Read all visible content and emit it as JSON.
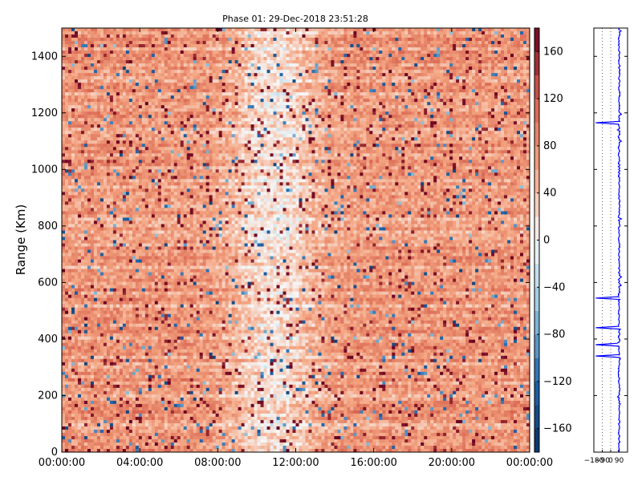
{
  "chart_data": {
    "type": "heatmap",
    "title": "Phase 01: 29-Dec-2018 23:51:28",
    "ylabel": "Range (Km)",
    "xlabel": "",
    "x_ticks": [
      "00:00:00",
      "04:00:00",
      "08:00:00",
      "12:00:00",
      "16:00:00",
      "20:00:00",
      "00:00:00"
    ],
    "y_ticks": [
      0,
      200,
      400,
      600,
      800,
      1000,
      1200,
      1400
    ],
    "xlim_hours": [
      0,
      24
    ],
    "ylim": [
      0,
      1500
    ],
    "colorbar": {
      "ticks": [
        160,
        120,
        80,
        40,
        0,
        -40,
        -80,
        -120,
        -160
      ],
      "range": [
        -180,
        180
      ],
      "colormap": "diverging blue-white-red"
    },
    "profile_panel": {
      "x_ticks": [
        "-180",
        "-90",
        "0",
        "90"
      ],
      "xlim": [
        -180,
        180
      ],
      "ylim": [
        0,
        1500
      ],
      "line_color": "#0000ff",
      "mean_value": 90
    }
  }
}
